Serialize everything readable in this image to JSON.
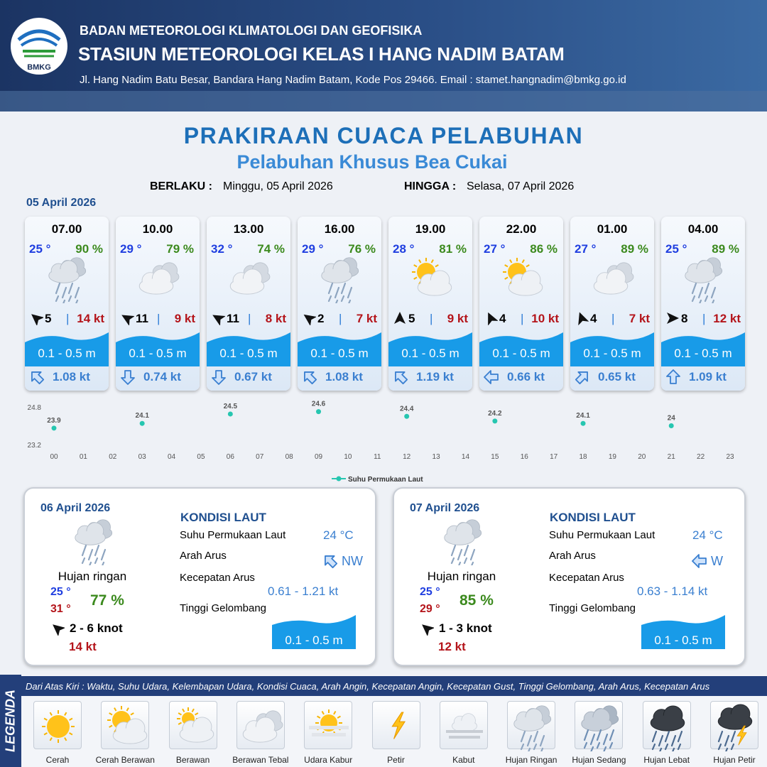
{
  "header": {
    "org": "BADAN METEOROLOGI KLIMATOLOGI DAN GEOFISIKA",
    "station": "STASIUN METEOROLOGI KELAS I HANG NADIM BATAM",
    "address": "Jl. Hang Nadim Batu Besar, Bandara Hang Nadim Batam, Kode Pos 29466. Email : stamet.hangnadim@bmkg.go.id",
    "logo_text": "BMKG"
  },
  "title": "PRAKIRAAN CUACA PELABUHAN",
  "subtitle": "Pelabuhan Khusus Bea Cukai",
  "validity": {
    "from_label": "BERLAKU :",
    "from": "Minggu, 05 April 2026",
    "to_label": "HINGGA :",
    "to": "Selasa, 07 April 2026"
  },
  "day1_date": "05 April 2026",
  "forecasts": [
    {
      "time": "07.00",
      "temp": "25 °",
      "humidity": "90 %",
      "wind": "5",
      "gust": "14 kt",
      "wave": "0.1 - 0.5 m",
      "current": "1.08 kt"
    },
    {
      "time": "10.00",
      "temp": "29 °",
      "humidity": "79 %",
      "wind": "11",
      "gust": "9 kt",
      "wave": "0.1 - 0.5 m",
      "current": "0.74 kt"
    },
    {
      "time": "13.00",
      "temp": "32 °",
      "humidity": "74 %",
      "wind": "11",
      "gust": "8 kt",
      "wave": "0.1 - 0.5 m",
      "current": "0.67 kt"
    },
    {
      "time": "16.00",
      "temp": "29 °",
      "humidity": "76 %",
      "wind": "2",
      "gust": "7 kt",
      "wave": "0.1 - 0.5 m",
      "current": "1.08 kt"
    },
    {
      "time": "19.00",
      "temp": "28 °",
      "humidity": "81 %",
      "wind": "5",
      "gust": "9 kt",
      "wave": "0.1 - 0.5 m",
      "current": "1.19 kt"
    },
    {
      "time": "22.00",
      "temp": "27 °",
      "humidity": "86 %",
      "wind": "4",
      "gust": "10 kt",
      "wave": "0.1 - 0.5 m",
      "current": "0.66 kt"
    },
    {
      "time": "01.00",
      "temp": "27 °",
      "humidity": "89 %",
      "wind": "4",
      "gust": "7 kt",
      "wave": "0.1 - 0.5 m",
      "current": "0.65 kt"
    },
    {
      "time": "04.00",
      "temp": "25 °",
      "humidity": "89 %",
      "wind": "8",
      "gust": "12 kt",
      "wave": "0.1 - 0.5 m",
      "current": "1.09 kt"
    }
  ],
  "chart_data": {
    "type": "scatter",
    "x": [
      0,
      3,
      6,
      9,
      12,
      15,
      18,
      21
    ],
    "series": [
      {
        "name": "Suhu Permukaan Laut",
        "color": "#26c6b0",
        "values": [
          23.9,
          24.1,
          24.5,
          24.6,
          24.4,
          24.2,
          24.1,
          24.0
        ]
      }
    ],
    "xlim": [
      0,
      23
    ],
    "xticks": [
      {
        "value": 0,
        "label": "00"
      },
      {
        "value": 1,
        "label": "01"
      },
      {
        "value": 2,
        "label": "02"
      },
      {
        "value": 3,
        "label": "03"
      },
      {
        "value": 4,
        "label": "04"
      },
      {
        "value": 5,
        "label": "05"
      },
      {
        "value": 6,
        "label": "06"
      },
      {
        "value": 7,
        "label": "07"
      },
      {
        "value": 8,
        "label": "08"
      },
      {
        "value": 9,
        "label": "09"
      },
      {
        "value": 10,
        "label": "10"
      },
      {
        "value": 11,
        "label": "11"
      },
      {
        "value": 12,
        "label": "12"
      },
      {
        "value": 13,
        "label": "13"
      },
      {
        "value": 14,
        "label": "14"
      },
      {
        "value": 15,
        "label": "15"
      },
      {
        "value": 16,
        "label": "16"
      },
      {
        "value": 17,
        "label": "17"
      },
      {
        "value": 18,
        "label": "18"
      },
      {
        "value": 19,
        "label": "19"
      },
      {
        "value": 20,
        "label": "20"
      },
      {
        "value": 21,
        "label": "21"
      },
      {
        "value": 22,
        "label": "22"
      },
      {
        "value": 23,
        "label": "23"
      }
    ],
    "ylim": [
      23.2,
      24.8
    ],
    "yticks": [
      23.2,
      24.8
    ]
  },
  "days": [
    {
      "date": "06 April 2026",
      "condition": "Hujan ringan",
      "temp_min": "25 °",
      "temp_max": "31 °",
      "humidity": "77 %",
      "wind": "2  - 6 knot",
      "gust": "14 kt",
      "sea_heading": "KONDISI LAUT",
      "labels": [
        "Suhu Permukaan Laut",
        "Arah Arus",
        "Kecepatan Arus",
        "Tinggi Gelombang"
      ],
      "sst": "24 °C",
      "current_dir": "NW",
      "current_speed": "0.61  - 1.21 kt",
      "wave": "0.1 - 0.5 m"
    },
    {
      "date": "07 April 2026",
      "condition": "Hujan ringan",
      "temp_min": "25 °",
      "temp_max": "29 °",
      "humidity": "85 %",
      "wind": "1  - 3 knot",
      "gust": "12 kt",
      "sea_heading": "KONDISI LAUT",
      "labels": [
        "Suhu Permukaan Laut",
        "Arah Arus",
        "Kecepatan Arus",
        "Tinggi Gelombang"
      ],
      "sst": "24 °C",
      "current_dir": "W",
      "current_speed": "0.63  - 1.14 kt",
      "wave": "0.1 - 0.5 m"
    }
  ],
  "legend": {
    "heading": "LEGENDA",
    "caption": "Dari Atas Kiri : Waktu, Suhu Udara, Kelembapan Udara, Kondisi Cuaca, Arah Angin, Kecepatan Angin, Kecepatan Gust, Tinggi Gelombang, Arah Arus, Kecepatan Arus",
    "items": [
      "Cerah",
      "Cerah Berawan",
      "Berawan",
      "Berawan Tebal",
      "Udara Kabur",
      "Petir",
      "Kabut",
      "Hujan Ringan",
      "Hujan Sedang",
      "Hujan Lebat",
      "Hujan Petir"
    ]
  }
}
